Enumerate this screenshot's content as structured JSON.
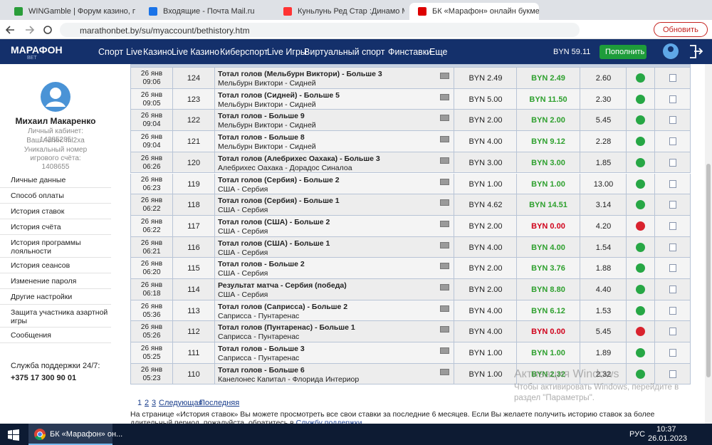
{
  "browser": {
    "tabs": [
      "WINGamble | Форум казино, по",
      "Входящие - Почта Mail.ru",
      "Куньлунь Ред Стар :Динамо Ми",
      "БК «Марафон» онлайн букмеке"
    ],
    "url": "marathonbet.by/su/myaccount/bethistory.htm",
    "update_button": "Обновить"
  },
  "header": {
    "logo": "МАРАФОН",
    "logo_sub": "BET",
    "nav": [
      "Спорт",
      "Live",
      "Казино",
      "Live Казино",
      "Киберспорт",
      "Live Игры",
      "Виртуальный спорт",
      "Финставки",
      "Еще"
    ],
    "balance": "BYN 59.11",
    "deposit": "Пополнить"
  },
  "sidebar": {
    "name": "Михаил Макаренко",
    "info": [
      "Личный кабинет: 14285285",
      "Ваш логин: ml2xa",
      "Уникальный номер игрового счёта: 1408655"
    ],
    "menu": [
      "Личные данные",
      "Способ оплаты",
      "История ставок",
      "История счёта",
      "История программы лояльности",
      "История сеансов",
      "Изменение пароля",
      "Другие настройки",
      "Защита участника азартной игры",
      "Сообщения"
    ],
    "support_title": "Служба поддержки 24/7:",
    "support_phone": "+375 17 300 90 01"
  },
  "table": {
    "rows": [
      [
        "26 янв",
        "09:06",
        "124",
        "Тотал голов (Мельбурн Виктори) - Больше 3",
        "Мельбурн Виктори - Сидней",
        "BYN 2.49",
        "BYN 2.49",
        "2.60",
        "won"
      ],
      [
        "26 янв",
        "09:05",
        "123",
        "Тотал голов (Сидней) - Больше 5",
        "Мельбурн Виктори - Сидней",
        "BYN 5.00",
        "BYN 11.50",
        "2.30",
        "won"
      ],
      [
        "26 янв",
        "09:04",
        "122",
        "Тотал голов - Больше 9",
        "Мельбурн Виктори - Сидней",
        "BYN 2.00",
        "BYN 2.00",
        "5.45",
        "won"
      ],
      [
        "26 янв",
        "09:04",
        "121",
        "Тотал голов - Больше 8",
        "Мельбурн Виктори - Сидней",
        "BYN 4.00",
        "BYN 9.12",
        "2.28",
        "won"
      ],
      [
        "26 янв",
        "06:26",
        "120",
        "Тотал голов (Алебрихес Оахака) - Больше 3",
        "Алебрихес Оахака - Дорадос Синалоа",
        "BYN 3.00",
        "BYN 3.00",
        "1.85",
        "won"
      ],
      [
        "26 янв",
        "06:23",
        "119",
        "Тотал голов (Сербия) - Больше 2",
        "США - Сербия",
        "BYN 1.00",
        "BYN 1.00",
        "13.00",
        "won"
      ],
      [
        "26 янв",
        "06:22",
        "118",
        "Тотал голов (Сербия) - Больше 1",
        "США - Сербия",
        "BYN 4.62",
        "BYN 14.51",
        "3.14",
        "won"
      ],
      [
        "26 янв",
        "06:22",
        "117",
        "Тотал голов (США) - Больше 2",
        "США - Сербия",
        "BYN 2.00",
        "BYN 0.00",
        "4.20",
        "lost"
      ],
      [
        "26 янв",
        "06:21",
        "116",
        "Тотал голов (США) - Больше 1",
        "США - Сербия",
        "BYN 4.00",
        "BYN 4.00",
        "1.54",
        "won"
      ],
      [
        "26 янв",
        "06:20",
        "115",
        "Тотал голов - Больше 2",
        "США - Сербия",
        "BYN 2.00",
        "BYN 3.76",
        "1.88",
        "won"
      ],
      [
        "26 янв",
        "06:18",
        "114",
        "Результат матча - Сербия (победа)",
        "США - Сербия",
        "BYN 2.00",
        "BYN 8.80",
        "4.40",
        "won"
      ],
      [
        "26 янв",
        "05:36",
        "113",
        "Тотал голов (Саприсса) - Больше 2",
        "Саприсса - Пунтаренас",
        "BYN 4.00",
        "BYN 6.12",
        "1.53",
        "won"
      ],
      [
        "26 янв",
        "05:26",
        "112",
        "Тотал голов (Пунтаренас) - Больше 1",
        "Саприсса - Пунтаренас",
        "BYN 4.00",
        "BYN 0.00",
        "5.45",
        "lost"
      ],
      [
        "26 янв",
        "05:25",
        "111",
        "Тотал голов - Больше 3",
        "Саприсса - Пунтаренас",
        "BYN 1.00",
        "BYN 1.00",
        "1.89",
        "won"
      ],
      [
        "26 янв",
        "05:23",
        "110",
        "Тотал голов - Больше 6",
        "Канелонес Капитал - Флорида Интериор",
        "BYN 1.00",
        "BYN 2.32",
        "2.32",
        "won"
      ]
    ]
  },
  "pagination": [
    "1",
    "2",
    "3",
    "Следующая",
    "Последняя"
  ],
  "note": {
    "text": "На странице «История ставок» Вы можете просмотреть все свои ставки за последние 6 месяцев. Если Вы желаете получить историю ставок за более длительный период, пожалуйста, обратитесь в",
    "link": "Службу поддержки"
  },
  "watermark": {
    "title": "Активация Windows",
    "text": "Чтобы активировать Windows, перейдите в раздел \"Параметры\"."
  },
  "taskbar": {
    "app": "БК «Марафон» он...",
    "lang": "РУС",
    "time": "10:37",
    "date": "26.01.2023"
  }
}
